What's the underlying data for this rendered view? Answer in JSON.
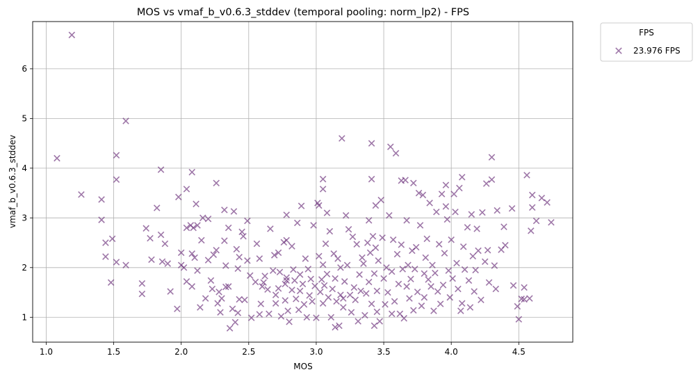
{
  "chart_data": {
    "type": "scatter",
    "title": "MOS vs vmaf_b_v0.6.3_stddev (temporal pooling: norm_lp2) - FPS",
    "xlabel": "MOS",
    "ylabel": "vmaf_b_v0.6.3_stddev",
    "xlim": [
      0.9,
      4.9
    ],
    "ylim": [
      0.5,
      6.95
    ],
    "x_ticks": [
      {
        "value": 1.0,
        "label": "1.0"
      },
      {
        "value": 1.5,
        "label": "1.5"
      },
      {
        "value": 2.0,
        "label": "2.0"
      },
      {
        "value": 2.5,
        "label": "2.5"
      },
      {
        "value": 3.0,
        "label": "3.0"
      },
      {
        "value": 3.5,
        "label": "3.5"
      },
      {
        "value": 4.0,
        "label": "4.0"
      },
      {
        "value": 4.5,
        "label": "4.5"
      }
    ],
    "y_ticks": [
      {
        "value": 1,
        "label": "1"
      },
      {
        "value": 2,
        "label": "2"
      },
      {
        "value": 3,
        "label": "3"
      },
      {
        "value": 4,
        "label": "4"
      },
      {
        "value": 5,
        "label": "5"
      },
      {
        "value": 6,
        "label": "6"
      }
    ],
    "grid": true,
    "marker": "x",
    "color": "#6a2e7a",
    "legend": {
      "title": "FPS",
      "placement": "outside upper right"
    },
    "series": [
      {
        "name": "23.976 FPS",
        "points": [
          [
            1.08,
            4.2
          ],
          [
            1.19,
            6.68
          ],
          [
            1.26,
            3.47
          ],
          [
            1.41,
            3.37
          ],
          [
            1.41,
            2.96
          ],
          [
            1.44,
            2.5
          ],
          [
            1.44,
            2.22
          ],
          [
            1.48,
            1.7
          ],
          [
            1.49,
            2.58
          ],
          [
            1.52,
            4.26
          ],
          [
            1.52,
            3.77
          ],
          [
            1.52,
            2.11
          ],
          [
            1.59,
            4.95
          ],
          [
            1.59,
            2.05
          ],
          [
            1.71,
            1.68
          ],
          [
            1.71,
            1.47
          ],
          [
            1.74,
            2.79
          ],
          [
            1.77,
            2.59
          ],
          [
            1.78,
            2.16
          ],
          [
            1.82,
            3.2
          ],
          [
            1.85,
            3.97
          ],
          [
            1.85,
            2.66
          ],
          [
            1.86,
            2.12
          ],
          [
            1.88,
            2.48
          ],
          [
            1.9,
            2.08
          ],
          [
            1.92,
            1.52
          ],
          [
            1.97,
            1.17
          ],
          [
            1.98,
            3.42
          ],
          [
            2.0,
            2.3
          ],
          [
            2.0,
            2.05
          ],
          [
            2.02,
            2.0
          ],
          [
            2.04,
            3.58
          ],
          [
            2.04,
            2.8
          ],
          [
            2.04,
            1.72
          ],
          [
            2.07,
            2.85
          ],
          [
            2.08,
            3.92
          ],
          [
            2.08,
            2.28
          ],
          [
            2.08,
            1.62
          ],
          [
            2.09,
            2.8
          ],
          [
            2.1,
            2.2
          ],
          [
            2.11,
            3.28
          ],
          [
            2.12,
            2.85
          ],
          [
            2.12,
            1.94
          ],
          [
            2.14,
            1.2
          ],
          [
            2.15,
            2.55
          ],
          [
            2.16,
            3.0
          ],
          [
            2.18,
            1.38
          ],
          [
            2.2,
            2.98
          ],
          [
            2.2,
            2.15
          ],
          [
            2.22,
            1.74
          ],
          [
            2.23,
            1.57
          ],
          [
            2.24,
            2.26
          ],
          [
            2.26,
            3.7
          ],
          [
            2.26,
            2.35
          ],
          [
            2.27,
            1.28
          ],
          [
            2.28,
            1.51
          ],
          [
            2.29,
            1.1
          ],
          [
            2.3,
            1.38
          ],
          [
            2.32,
            3.16
          ],
          [
            2.32,
            2.54
          ],
          [
            2.33,
            2.04
          ],
          [
            2.33,
            1.61
          ],
          [
            2.35,
            2.8
          ],
          [
            2.35,
            1.62
          ],
          [
            2.36,
            0.78
          ],
          [
            2.38,
            1.17
          ],
          [
            2.39,
            3.13
          ],
          [
            2.4,
            0.9
          ],
          [
            2.41,
            2.37
          ],
          [
            2.42,
            1.98
          ],
          [
            2.42,
            1.09
          ],
          [
            2.43,
            2.21
          ],
          [
            2.43,
            1.36
          ],
          [
            2.45,
            2.72
          ],
          [
            2.46,
            2.63
          ],
          [
            2.47,
            1.35
          ],
          [
            2.49,
            2.94
          ],
          [
            2.49,
            2.14
          ],
          [
            2.51,
            1.84
          ],
          [
            2.52,
            0.99
          ],
          [
            2.55,
            1.71
          ],
          [
            2.56,
            2.48
          ],
          [
            2.58,
            1.06
          ],
          [
            2.58,
            2.18
          ],
          [
            2.59,
            1.27
          ],
          [
            2.6,
            1.62
          ],
          [
            2.61,
            1.7
          ],
          [
            2.62,
            1.83
          ],
          [
            2.64,
            1.56
          ],
          [
            2.65,
            1.07
          ],
          [
            2.66,
            2.78
          ],
          [
            2.68,
            1.94
          ],
          [
            2.69,
            2.25
          ],
          [
            2.7,
            1.45
          ],
          [
            2.7,
            1.28
          ],
          [
            2.72,
            2.3
          ],
          [
            2.72,
            1.58
          ],
          [
            2.73,
            1.91
          ],
          [
            2.74,
            1.02
          ],
          [
            2.76,
            2.51
          ],
          [
            2.77,
            1.67
          ],
          [
            2.77,
            1.34
          ],
          [
            2.78,
            3.06
          ],
          [
            2.78,
            2.55
          ],
          [
            2.78,
            1.8
          ],
          [
            2.78,
            1.74
          ],
          [
            2.79,
            1.13
          ],
          [
            2.8,
            0.91
          ],
          [
            2.82,
            2.43
          ],
          [
            2.82,
            1.55
          ],
          [
            2.83,
            1.96
          ],
          [
            2.84,
            1.74
          ],
          [
            2.85,
            1.37
          ],
          [
            2.86,
            2.9
          ],
          [
            2.87,
            1.15
          ],
          [
            2.88,
            1.53
          ],
          [
            2.88,
            1.86
          ],
          [
            2.89,
            3.24
          ],
          [
            2.9,
            1.67
          ],
          [
            2.91,
            1.26
          ],
          [
            2.92,
            2.18
          ],
          [
            2.93,
            1.0
          ],
          [
            2.94,
            1.97
          ],
          [
            2.95,
            1.44
          ],
          [
            2.96,
            1.77
          ],
          [
            2.97,
            1.32
          ],
          [
            2.98,
            2.85
          ],
          [
            2.99,
            1.63
          ],
          [
            3.0,
            0.99
          ],
          [
            3.01,
            3.3
          ],
          [
            3.02,
            3.25
          ],
          [
            3.02,
            2.23
          ],
          [
            3.03,
            1.51
          ],
          [
            3.04,
            1.76
          ],
          [
            3.05,
            3.78
          ],
          [
            3.05,
            3.58
          ],
          [
            3.05,
            2.06
          ],
          [
            3.05,
            1.28
          ],
          [
            3.06,
            1.64
          ],
          [
            3.07,
            2.48
          ],
          [
            3.08,
            3.1
          ],
          [
            3.08,
            1.87
          ],
          [
            3.09,
            1.4
          ],
          [
            3.1,
            2.73
          ],
          [
            3.11,
            1.0
          ],
          [
            3.12,
            1.57
          ],
          [
            3.13,
            2.28
          ],
          [
            3.14,
            0.8
          ],
          [
            3.14,
            1.78
          ],
          [
            3.15,
            1.32
          ],
          [
            3.16,
            2.18
          ],
          [
            3.17,
            0.83
          ],
          [
            3.18,
            1.45
          ],
          [
            3.18,
            2.0
          ],
          [
            3.19,
            4.6
          ],
          [
            3.2,
            1.38
          ],
          [
            3.2,
            1.2
          ],
          [
            3.21,
            1.72
          ],
          [
            3.22,
            3.05
          ],
          [
            3.23,
            2.05
          ],
          [
            3.24,
            2.77
          ],
          [
            3.25,
            1.45
          ],
          [
            3.26,
            1.1
          ],
          [
            3.27,
            2.62
          ],
          [
            3.28,
            1.6
          ],
          [
            3.29,
            1.35
          ],
          [
            3.3,
            2.47
          ],
          [
            3.31,
            0.92
          ],
          [
            3.32,
            1.86
          ],
          [
            3.33,
            1.53
          ],
          [
            3.34,
            2.2
          ],
          [
            3.35,
            2.08
          ],
          [
            3.36,
            1.04
          ],
          [
            3.37,
            1.48
          ],
          [
            3.38,
            2.5
          ],
          [
            3.39,
            2.95
          ],
          [
            3.39,
            1.71
          ],
          [
            3.4,
            2.3
          ],
          [
            3.41,
            4.5
          ],
          [
            3.41,
            3.78
          ],
          [
            3.41,
            1.27
          ],
          [
            3.42,
            2.63
          ],
          [
            3.43,
            1.88
          ],
          [
            3.43,
            0.83
          ],
          [
            3.44,
            3.25
          ],
          [
            3.44,
            2.4
          ],
          [
            3.45,
            1.53
          ],
          [
            3.45,
            1.11
          ],
          [
            3.46,
            2.14
          ],
          [
            3.47,
            0.92
          ],
          [
            3.48,
            3.36
          ],
          [
            3.49,
            2.6
          ],
          [
            3.5,
            1.78
          ],
          [
            3.51,
            1.26
          ],
          [
            3.52,
            2.0
          ],
          [
            3.53,
            1.5
          ],
          [
            3.54,
            3.05
          ],
          [
            3.55,
            4.43
          ],
          [
            3.56,
            1.92
          ],
          [
            3.56,
            1.07
          ],
          [
            3.57,
            2.56
          ],
          [
            3.58,
            1.32
          ],
          [
            3.59,
            4.3
          ],
          [
            3.6,
            2.27
          ],
          [
            3.61,
            1.67
          ],
          [
            3.62,
            1.07
          ],
          [
            3.63,
            2.46
          ],
          [
            3.63,
            3.75
          ],
          [
            3.64,
            1.97
          ],
          [
            3.65,
            0.98
          ],
          [
            3.66,
            3.76
          ],
          [
            3.67,
            2.95
          ],
          [
            3.67,
            1.62
          ],
          [
            3.68,
            2.05
          ],
          [
            3.69,
            1.38
          ],
          [
            3.7,
            1.77
          ],
          [
            3.71,
            2.34
          ],
          [
            3.72,
            3.7
          ],
          [
            3.72,
            1.14
          ],
          [
            3.73,
            1.97
          ],
          [
            3.74,
            2.41
          ],
          [
            3.75,
            1.51
          ],
          [
            3.76,
            3.5
          ],
          [
            3.77,
            2.85
          ],
          [
            3.78,
            1.23
          ],
          [
            3.79,
            3.46
          ],
          [
            3.8,
            1.88
          ],
          [
            3.8,
            1.4
          ],
          [
            3.81,
            2.2
          ],
          [
            3.82,
            2.58
          ],
          [
            3.83,
            1.76
          ],
          [
            3.84,
            3.3
          ],
          [
            3.85,
            1.62
          ],
          [
            3.86,
            2.05
          ],
          [
            3.87,
            1.13
          ],
          [
            3.88,
            1.89
          ],
          [
            3.89,
            3.12
          ],
          [
            3.9,
            1.52
          ],
          [
            3.91,
            2.47
          ],
          [
            3.92,
            1.27
          ],
          [
            3.93,
            3.48
          ],
          [
            3.94,
            1.65
          ],
          [
            3.95,
            2.29
          ],
          [
            3.96,
            3.23
          ],
          [
            3.96,
            3.66
          ],
          [
            3.97,
            2.97
          ],
          [
            3.98,
            1.94
          ],
          [
            3.99,
            1.4
          ],
          [
            4.0,
            2.56
          ],
          [
            4.01,
            1.78
          ],
          [
            4.02,
            3.48
          ],
          [
            4.03,
            3.12
          ],
          [
            4.04,
            2.09
          ],
          [
            4.05,
            1.57
          ],
          [
            4.06,
            3.6
          ],
          [
            4.07,
            1.13
          ],
          [
            4.08,
            3.82
          ],
          [
            4.08,
            1.28
          ],
          [
            4.09,
            2.42
          ],
          [
            4.1,
            1.96
          ],
          [
            4.12,
            2.81
          ],
          [
            4.13,
            1.74
          ],
          [
            4.14,
            1.2
          ],
          [
            4.15,
            3.07
          ],
          [
            4.16,
            2.23
          ],
          [
            4.17,
            1.52
          ],
          [
            4.18,
            1.95
          ],
          [
            4.19,
            2.78
          ],
          [
            4.2,
            2.34
          ],
          [
            4.22,
            1.35
          ],
          [
            4.23,
            3.11
          ],
          [
            4.25,
            2.12
          ],
          [
            4.26,
            3.69
          ],
          [
            4.27,
            2.35
          ],
          [
            4.28,
            1.7
          ],
          [
            4.3,
            4.22
          ],
          [
            4.3,
            3.77
          ],
          [
            4.32,
            2.04
          ],
          [
            4.33,
            1.57
          ],
          [
            4.34,
            3.15
          ],
          [
            4.37,
            2.36
          ],
          [
            4.39,
            2.82
          ],
          [
            4.4,
            2.45
          ],
          [
            4.45,
            3.19
          ],
          [
            4.46,
            1.64
          ],
          [
            4.49,
            1.22
          ],
          [
            4.5,
            0.96
          ],
          [
            4.52,
            1.37
          ],
          [
            4.54,
            1.6
          ],
          [
            4.54,
            1.36
          ],
          [
            4.56,
            3.86
          ],
          [
            4.58,
            1.38
          ],
          [
            4.59,
            2.74
          ],
          [
            4.6,
            3.46
          ],
          [
            4.6,
            3.21
          ],
          [
            4.63,
            2.94
          ],
          [
            4.67,
            3.4
          ],
          [
            4.71,
            3.31
          ],
          [
            4.74,
            2.91
          ]
        ]
      }
    ]
  }
}
